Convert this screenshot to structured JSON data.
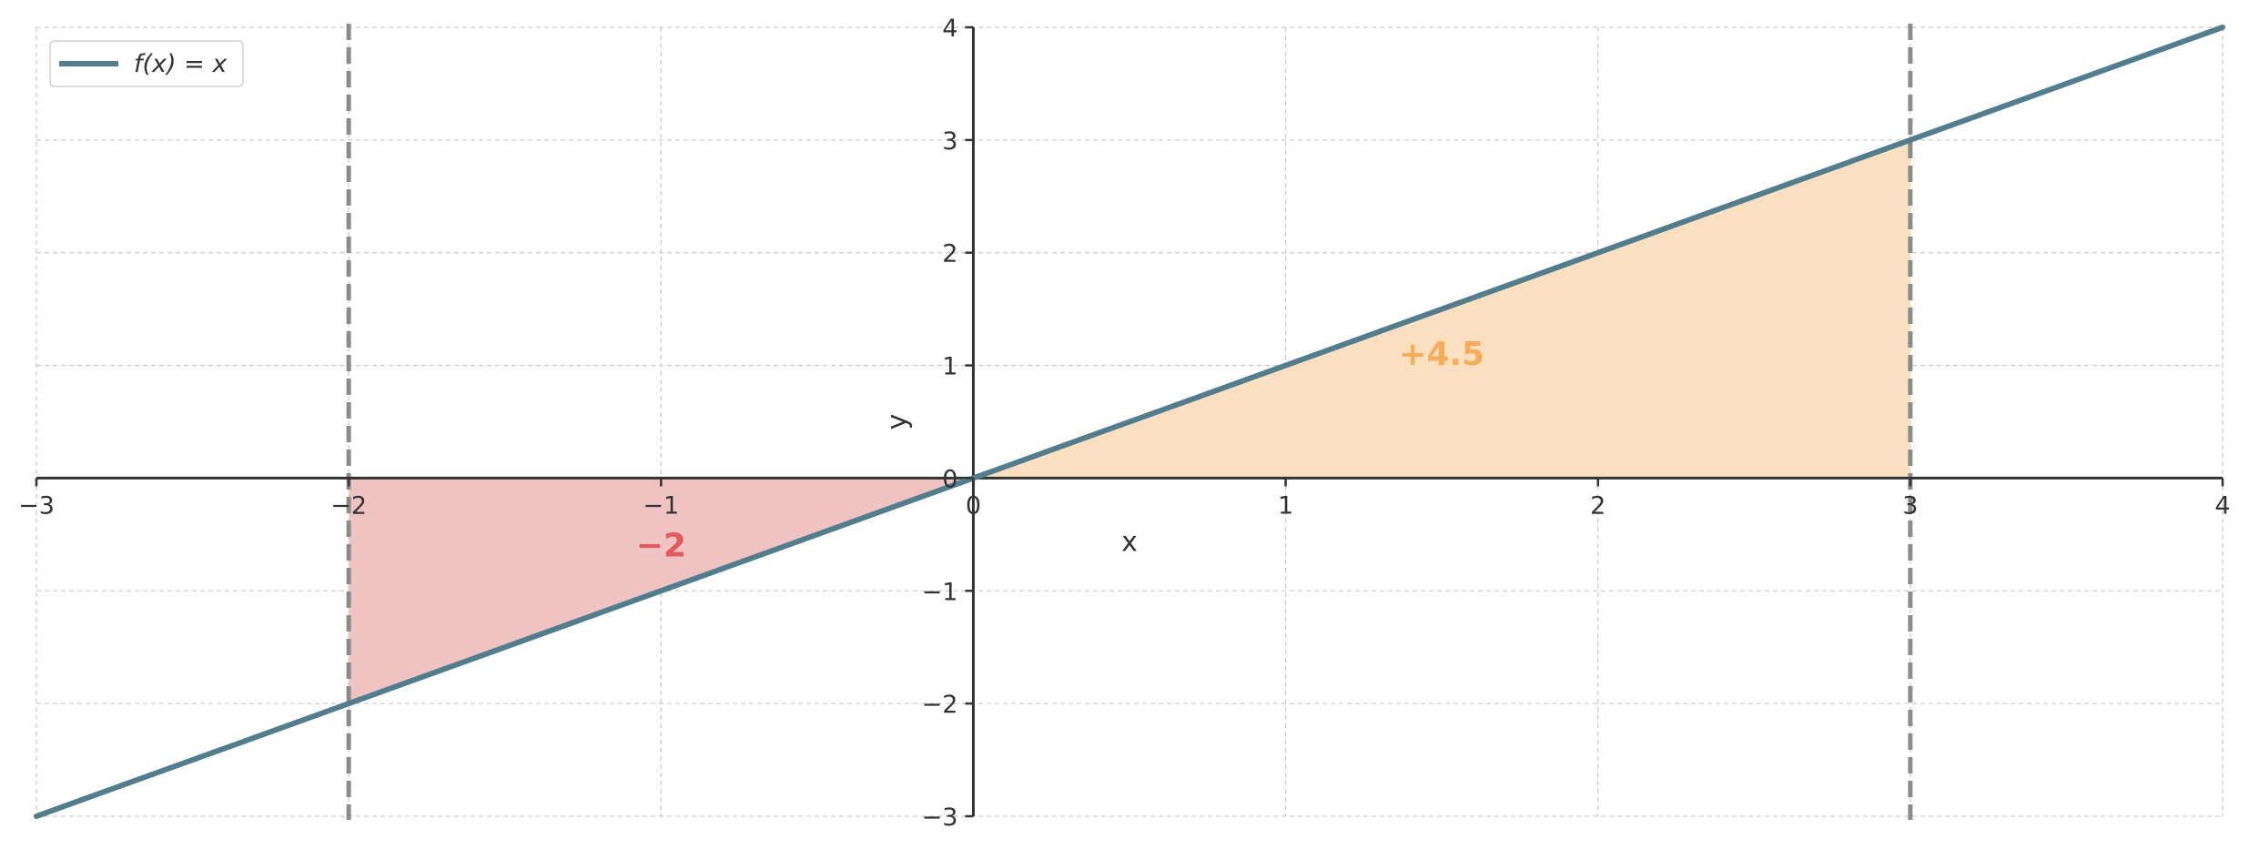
{
  "chart_data": {
    "type": "line",
    "function": "f(x) = x",
    "series": [
      {
        "name": "f(x) = x",
        "x": [
          -3,
          4
        ],
        "y": [
          -3,
          4
        ]
      }
    ],
    "xlim": [
      -3,
      4
    ],
    "ylim": [
      -3,
      4
    ],
    "xticks": [
      -3,
      -2,
      -1,
      0,
      1,
      2,
      3,
      4
    ],
    "yticks": [
      -3,
      -2,
      -1,
      0,
      1,
      2,
      3,
      4
    ],
    "xtick_labels": [
      "−3",
      "−2",
      "−1",
      "0",
      "1",
      "2",
      "3",
      "4"
    ],
    "ytick_labels": [
      "−3",
      "−2",
      "−1",
      "0",
      "1",
      "2",
      "3",
      "4"
    ],
    "xlabel": "x",
    "ylabel": "y",
    "vertical_lines": [
      -2,
      3
    ],
    "shaded_regions": [
      {
        "from": -2,
        "to": 0,
        "value_label": "−2",
        "label_at": [
          -1,
          -0.6
        ]
      },
      {
        "from": 0,
        "to": 3,
        "value_label": "+4.5",
        "label_at": [
          1.5,
          1.1
        ]
      }
    ],
    "legend": {
      "position": "top-left",
      "entries": [
        "f(x) = x"
      ]
    },
    "grid": true,
    "colors": {
      "line": "#527d8d",
      "negative_fill": "#f0c3c3",
      "negative_text": "#e05a5f",
      "positive_fill": "#fae0c0",
      "positive_text": "#f5ad5c",
      "vline": "#8c8c8c",
      "axis": "#333333",
      "grid": "#cccccc"
    }
  }
}
